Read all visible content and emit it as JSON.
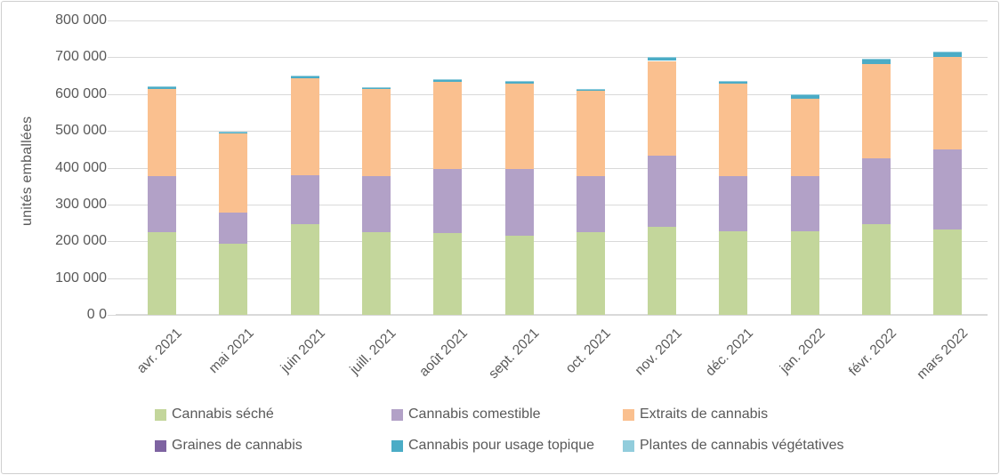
{
  "chart_data": {
    "type": "bar",
    "stacked": true,
    "title": "",
    "xlabel": "",
    "ylabel": "unités emballées",
    "ylim": [
      0,
      800000
    ],
    "grid": true,
    "legend_position": "bottom",
    "ytick_labels": [
      "800 000",
      "700 000",
      "600 000",
      "500 000",
      "400 000",
      "300 000",
      "200 000",
      "100 000",
      "0 0"
    ],
    "categories": [
      "avr. 2021",
      "mai 2021",
      "juin 2021",
      "juill. 2021",
      "août 2021",
      "sept. 2021",
      "oct. 2021",
      "nov. 2021",
      "déc. 2021",
      "jan. 2022",
      "févr. 2022",
      "mars 2022"
    ],
    "series": [
      {
        "name": "Cannabis séché",
        "color": "#c3d69b",
        "values": [
          224000,
          193000,
          246000,
          225000,
          223000,
          214000,
          225000,
          240000,
          226000,
          226000,
          246000,
          233000
        ]
      },
      {
        "name": "Cannabis comestible",
        "color": "#b2a1c7",
        "values": [
          152000,
          84000,
          133000,
          151000,
          174000,
          182000,
          152000,
          192000,
          150000,
          150000,
          180000,
          216000
        ]
      },
      {
        "name": "Extraits de cannabis",
        "color": "#fac08f",
        "values": [
          239000,
          218000,
          265000,
          237000,
          237000,
          232000,
          231000,
          258000,
          253000,
          212000,
          255000,
          253000
        ]
      },
      {
        "name": "Graines de cannabis",
        "color": "#7e63a1",
        "values": [
          0,
          0,
          0,
          0,
          0,
          0,
          0,
          0,
          0,
          0,
          0,
          0
        ]
      },
      {
        "name": "Cannabis pour usage topique",
        "color": "#4bacc6",
        "values": [
          4000,
          1000,
          4000,
          4000,
          5000,
          6000,
          4000,
          8000,
          5000,
          10000,
          13000,
          11000
        ]
      },
      {
        "name": "Plantes de cannabis végétatives",
        "color": "#92cddc",
        "values": [
          1000,
          2000,
          2000,
          1000,
          1000,
          2000,
          1000,
          2000,
          2000,
          2000,
          2000,
          2000
        ]
      }
    ]
  },
  "colors": {
    "text": "#595959",
    "gridline": "#d9d9d9",
    "background": "#ffffff"
  }
}
